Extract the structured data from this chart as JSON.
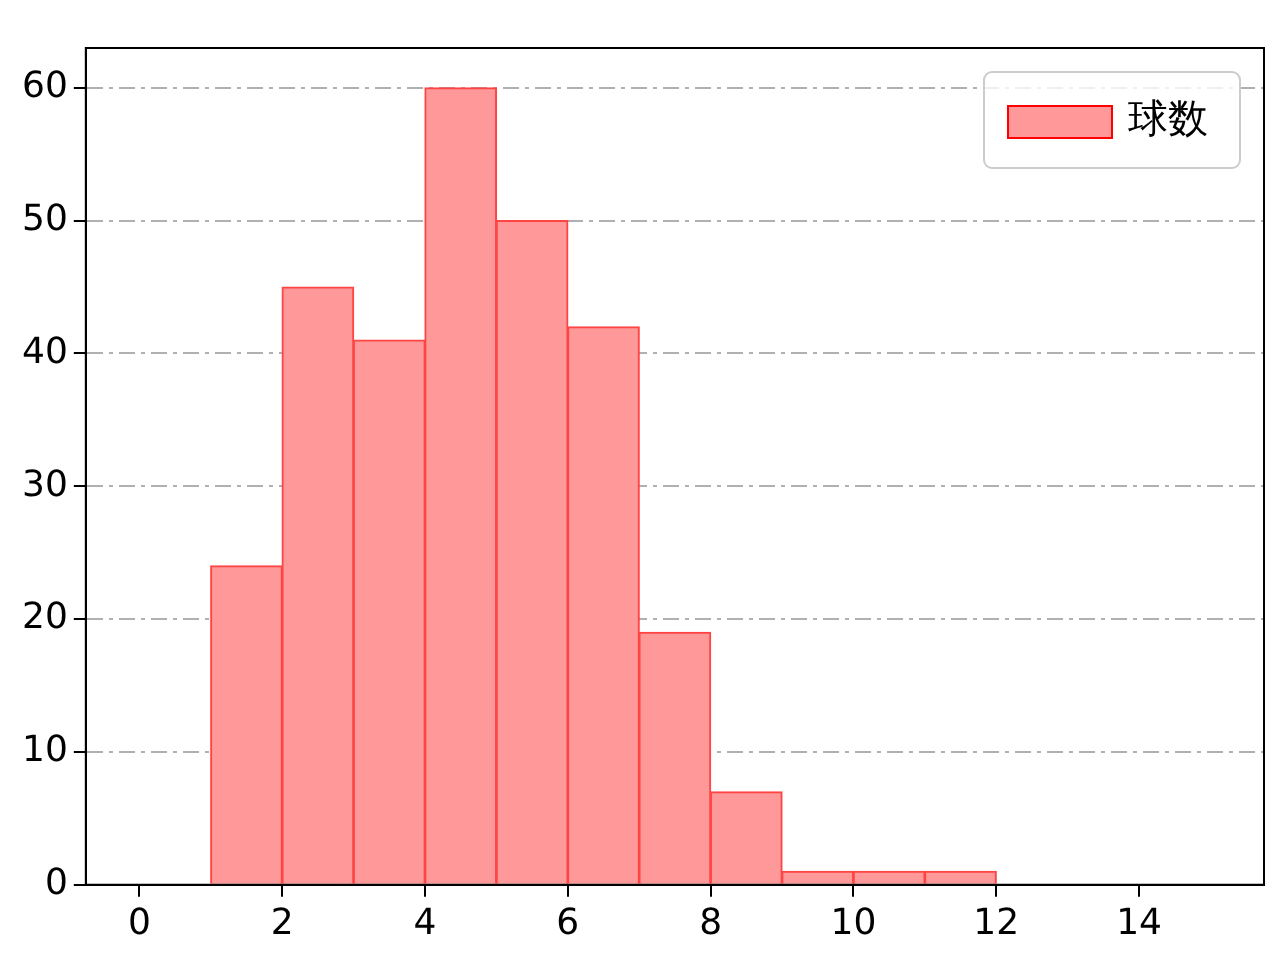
{
  "chart_data": {
    "type": "histogram",
    "bins": [
      0,
      1,
      2,
      3,
      4,
      5,
      6,
      7,
      8,
      9,
      10,
      11,
      12,
      13,
      14,
      15
    ],
    "series": [
      {
        "name": "球数",
        "color": "#ff9999",
        "values": [
          0,
          24,
          45,
          41,
          60,
          50,
          42,
          19,
          7,
          1,
          1,
          1,
          0,
          0,
          0
        ]
      }
    ],
    "xlim": [
      -0.75,
      15.75
    ],
    "xticks": [
      0,
      2,
      4,
      6,
      8,
      10,
      12,
      14
    ],
    "ylim": [
      0,
      63
    ],
    "yticks": [
      0,
      10,
      20,
      30,
      40,
      50,
      60
    ],
    "grid": "y",
    "legend": "top right"
  }
}
